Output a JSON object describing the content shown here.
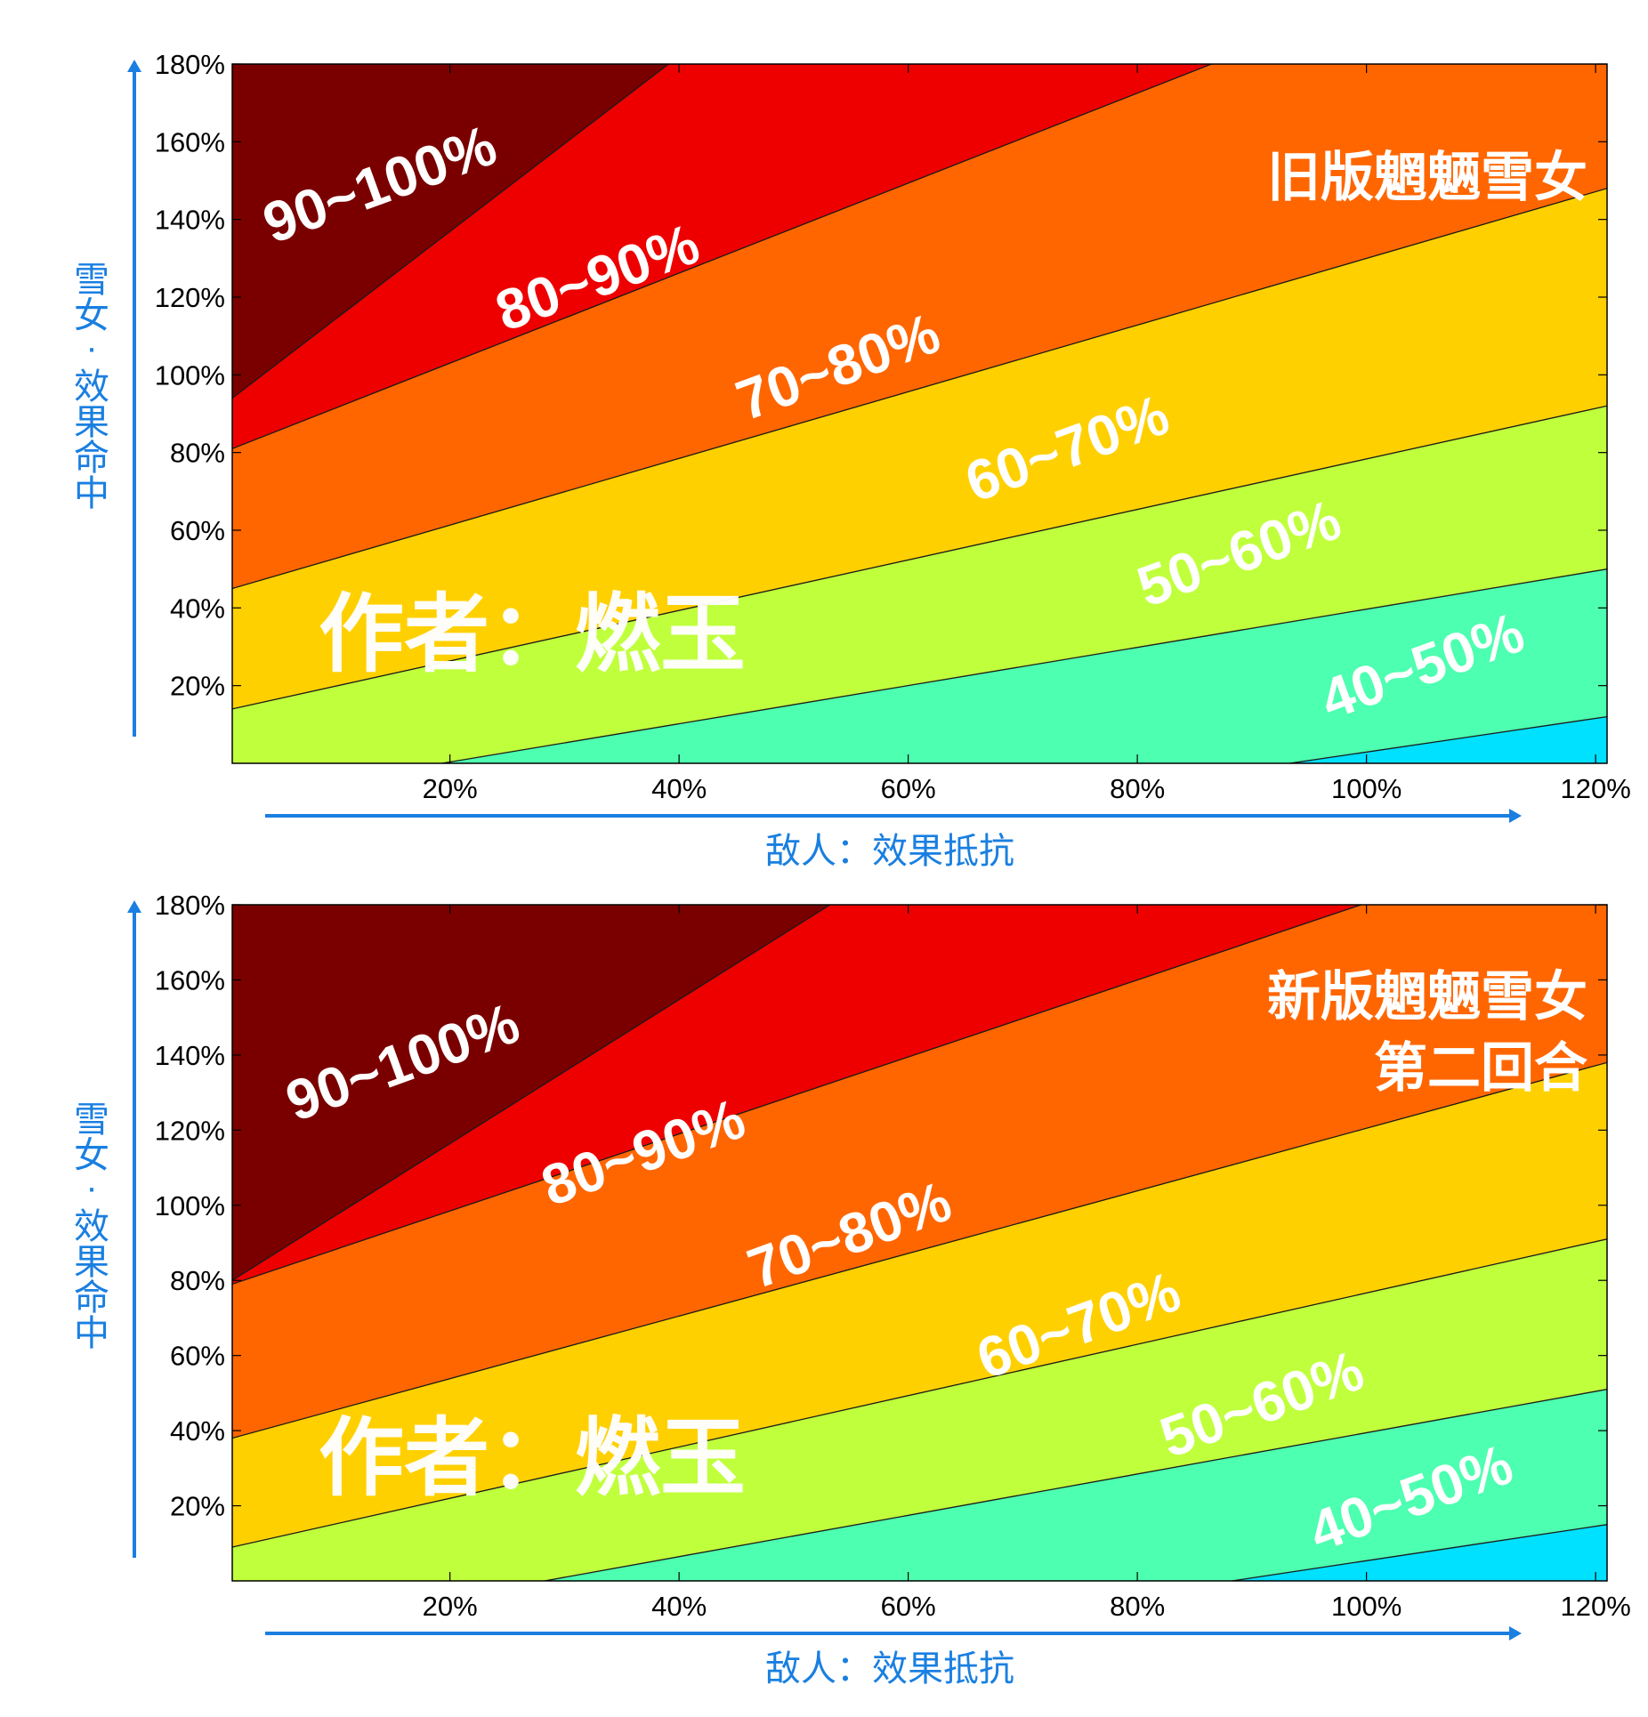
{
  "styles": {
    "axis_accent": "#1a7fe0",
    "band_colors": [
      "#00e0ff",
      "#4dffb0",
      "#c0ff3c",
      "#ffd000",
      "#ff6600",
      "#ee0000",
      "#7a0000"
    ],
    "contour_line": "#1a1a1a",
    "label_color": "#ffffff"
  },
  "chart_data": [
    {
      "type": "contour",
      "panel_title": "旧版魍魉雪女",
      "watermark": "作者：燃玉",
      "xlabel": "敌人：效果抵抗",
      "ylabel": "雪女·效果命中",
      "x_ticks": [
        "20%",
        "40%",
        "60%",
        "80%",
        "100%",
        "120%"
      ],
      "x_tick_values": [
        20,
        40,
        60,
        80,
        100,
        120
      ],
      "y_ticks": [
        "20%",
        "40%",
        "60%",
        "80%",
        "100%",
        "120%",
        "140%",
        "160%",
        "180%"
      ],
      "y_tick_values": [
        20,
        40,
        60,
        80,
        100,
        120,
        140,
        160,
        180
      ],
      "xlim": [
        1,
        121
      ],
      "ylim": [
        0,
        180
      ],
      "band_labels": [
        "40~50%",
        "50~60%",
        "60~70%",
        "70~80%",
        "80~90%",
        "90~100%"
      ],
      "contour_lines": [
        {
          "level": "40%",
          "x": [
            1,
            121
          ],
          "y": [
            -40,
            12
          ]
        },
        {
          "level": "50%",
          "x": [
            1,
            121
          ],
          "y": [
            -9,
            50
          ]
        },
        {
          "level": "60%",
          "x": [
            1,
            121
          ],
          "y": [
            14,
            92
          ]
        },
        {
          "level": "70%",
          "x": [
            1,
            121
          ],
          "y": [
            45,
            148
          ]
        },
        {
          "level": "80%",
          "x": [
            1,
            121
          ],
          "y": [
            81,
            220
          ]
        },
        {
          "level": "90%",
          "x": [
            1,
            121
          ],
          "y": [
            94,
            365
          ]
        }
      ],
      "label_positions": [
        {
          "text": "90~100%",
          "x": 14,
          "y": 148
        },
        {
          "text": "80~90%",
          "x": 33,
          "y": 124
        },
        {
          "text": "70~80%",
          "x": 54,
          "y": 101
        },
        {
          "text": "60~70%",
          "x": 74,
          "y": 80
        },
        {
          "text": "50~60%",
          "x": 89,
          "y": 53
        },
        {
          "text": "40~50%",
          "x": 105,
          "y": 24
        }
      ]
    },
    {
      "type": "contour",
      "panel_title": "新版魍魉雪女",
      "panel_subtitle": "第二回合",
      "watermark": "作者：燃玉",
      "xlabel": "敌人：效果抵抗",
      "ylabel": "雪女·效果命中",
      "x_ticks": [
        "20%",
        "40%",
        "60%",
        "80%",
        "100%",
        "120%"
      ],
      "x_tick_values": [
        20,
        40,
        60,
        80,
        100,
        120
      ],
      "y_ticks": [
        "20%",
        "40%",
        "60%",
        "80%",
        "100%",
        "120%",
        "140%",
        "160%",
        "180%"
      ],
      "y_tick_values": [
        20,
        40,
        60,
        80,
        100,
        120,
        140,
        160,
        180
      ],
      "xlim": [
        1,
        121
      ],
      "ylim": [
        0,
        180
      ],
      "band_labels": [
        "40~50%",
        "50~60%",
        "60~70%",
        "70~80%",
        "80~90%",
        "90~100%"
      ],
      "contour_lines": [
        {
          "level": "40%",
          "x": [
            1,
            121
          ],
          "y": [
            -40,
            15
          ]
        },
        {
          "level": "50%",
          "x": [
            1,
            121
          ],
          "y": [
            -15,
            51
          ]
        },
        {
          "level": "60%",
          "x": [
            1,
            121
          ],
          "y": [
            9,
            91
          ]
        },
        {
          "level": "70%",
          "x": [
            1,
            121
          ],
          "y": [
            38,
            138
          ]
        },
        {
          "level": "80%",
          "x": [
            1,
            121
          ],
          "y": [
            79,
            202
          ]
        },
        {
          "level": "90%",
          "x": [
            1,
            121
          ],
          "y": [
            80,
            310
          ]
        }
      ],
      "label_positions": [
        {
          "text": "90~100%",
          "x": 16,
          "y": 137
        },
        {
          "text": "80~90%",
          "x": 37,
          "y": 113
        },
        {
          "text": "70~80%",
          "x": 55,
          "y": 91
        },
        {
          "text": "60~70%",
          "x": 75,
          "y": 67
        },
        {
          "text": "50~60%",
          "x": 91,
          "y": 46
        },
        {
          "text": "40~50%",
          "x": 104,
          "y": 21
        }
      ]
    }
  ]
}
